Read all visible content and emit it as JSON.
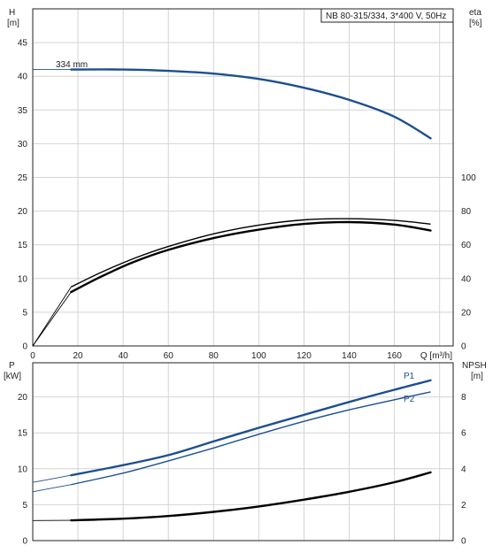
{
  "chart_data": [
    {
      "type": "line",
      "title": "NB 80-315/334, 3*400 V, 50Hz",
      "xlabel": "Q [m³/h]",
      "xlim": [
        0,
        186
      ],
      "x_ticks": [
        0,
        20,
        40,
        60,
        80,
        100,
        120,
        140,
        160
      ],
      "ylabel_left": "H",
      "ylabel_left_unit": "[m]",
      "ylim_left": [
        0,
        50
      ],
      "y_ticks_left": [
        0,
        5,
        10,
        15,
        20,
        25,
        30,
        35,
        40,
        45
      ],
      "ylabel_right": "eta",
      "ylabel_right_unit": "[%]",
      "ylim_right": [
        0,
        100
      ],
      "y_ticks_right": [
        0,
        20,
        40,
        60,
        80,
        100
      ],
      "grid": true,
      "series": [
        {
          "name": "334 mm",
          "axis": "left",
          "color": "#1d4f8f",
          "points": [
            [
              0,
              41.0
            ],
            [
              17,
              41.0
            ],
            [
              40,
              41.0
            ],
            [
              60,
              40.8
            ],
            [
              80,
              40.4
            ],
            [
              100,
              39.6
            ],
            [
              120,
              38.3
            ],
            [
              140,
              36.5
            ],
            [
              160,
              34.0
            ],
            [
              176,
              30.8
            ]
          ]
        },
        {
          "axis": "right",
          "color": "#000000",
          "points": [
            [
              0,
              0
            ],
            [
              17,
              32
            ],
            [
              30,
              41
            ],
            [
              45,
              50
            ],
            [
              60,
              57
            ],
            [
              80,
              64
            ],
            [
              100,
              69
            ],
            [
              120,
              72.4
            ],
            [
              140,
              73.5
            ],
            [
              160,
              72
            ],
            [
              176,
              68.5
            ]
          ]
        },
        {
          "axis": "right",
          "color": "#000000",
          "points": [
            [
              0,
              0
            ],
            [
              17,
              35
            ],
            [
              30,
              43.5
            ],
            [
              45,
              52
            ],
            [
              60,
              59
            ],
            [
              80,
              66.5
            ],
            [
              100,
              71.7
            ],
            [
              120,
              74.8
            ],
            [
              140,
              75.5
            ],
            [
              160,
              74.5
            ],
            [
              176,
              72.3
            ]
          ]
        }
      ]
    },
    {
      "type": "line",
      "xlim": [
        0,
        186
      ],
      "ylabel_left": "P",
      "ylabel_left_unit": "[kW]",
      "ylim_left": [
        0,
        25
      ],
      "y_ticks_left": [
        0,
        5,
        10,
        15,
        20
      ],
      "ylabel_right": "NPSH",
      "ylabel_right_unit": "[m]",
      "ylim_right": [
        0,
        10
      ],
      "y_ticks_right": [
        0,
        2,
        4,
        6,
        8
      ],
      "grid": true,
      "series": [
        {
          "name": "P1",
          "axis": "left",
          "color": "#1d4f8f",
          "points": [
            [
              0,
              8.1
            ],
            [
              17,
              9.1
            ],
            [
              40,
              10.5
            ],
            [
              60,
              11.9
            ],
            [
              80,
              13.8
            ],
            [
              100,
              15.7
            ],
            [
              120,
              17.5
            ],
            [
              140,
              19.3
            ],
            [
              160,
              21.0
            ],
            [
              176,
              22.3
            ]
          ]
        },
        {
          "name": "P2",
          "axis": "left",
          "color": "#1d4f8f",
          "points": [
            [
              0,
              6.8
            ],
            [
              17,
              7.8
            ],
            [
              40,
              9.4
            ],
            [
              60,
              11.1
            ],
            [
              80,
              12.9
            ],
            [
              100,
              14.8
            ],
            [
              120,
              16.6
            ],
            [
              140,
              18.2
            ],
            [
              160,
              19.6
            ],
            [
              176,
              20.7
            ]
          ]
        },
        {
          "axis": "right",
          "color": "#000000",
          "points": [
            [
              0,
              1.12
            ],
            [
              17,
              1.13
            ],
            [
              40,
              1.22
            ],
            [
              60,
              1.37
            ],
            [
              80,
              1.6
            ],
            [
              100,
              1.9
            ],
            [
              120,
              2.28
            ],
            [
              140,
              2.72
            ],
            [
              160,
              3.25
            ],
            [
              176,
              3.8
            ]
          ]
        }
      ]
    }
  ]
}
